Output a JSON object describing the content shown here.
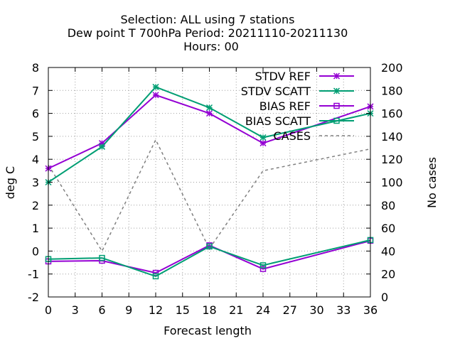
{
  "chart_data": {
    "type": "line",
    "title_lines": [
      "Selection: ALL using     7 stations",
      "Dew point T 700hPa   Period: 20211110-20211130",
      "Hours:  00"
    ],
    "xlabel": "Forecast length",
    "ylabel": "deg C",
    "y2label": "No cases",
    "x": [
      0,
      6,
      12,
      18,
      24,
      36
    ],
    "xlim": [
      0,
      36
    ],
    "xticks": [
      0,
      3,
      6,
      9,
      12,
      15,
      18,
      21,
      24,
      27,
      30,
      33,
      36
    ],
    "ylim": [
      -2,
      8
    ],
    "yticks": [
      -2,
      -1,
      0,
      1,
      2,
      3,
      4,
      5,
      6,
      7,
      8
    ],
    "y2lim": [
      0,
      200
    ],
    "y2ticks": [
      0,
      20,
      40,
      60,
      80,
      100,
      120,
      140,
      160,
      180,
      200
    ],
    "grid": true,
    "legend_position": "top-right",
    "series": [
      {
        "name": "STDV REF",
        "axis": "y",
        "color": "#9400d3",
        "marker": "star",
        "dash": false,
        "values": [
          3.6,
          4.7,
          6.8,
          6.0,
          4.7,
          6.3
        ]
      },
      {
        "name": "STDV SCATT",
        "axis": "y",
        "color": "#009e73",
        "marker": "star",
        "dash": false,
        "values": [
          3.0,
          4.55,
          7.15,
          6.25,
          4.95,
          6.0
        ]
      },
      {
        "name": "BIAS REF",
        "axis": "y",
        "color": "#9400d3",
        "marker": "square",
        "dash": false,
        "values": [
          -0.45,
          -0.42,
          -0.95,
          0.25,
          -0.78,
          0.45
        ]
      },
      {
        "name": "BIAS SCATT",
        "axis": "y",
        "color": "#009e73",
        "marker": "square",
        "dash": false,
        "values": [
          -0.35,
          -0.3,
          -1.1,
          0.2,
          -0.62,
          0.48
        ]
      },
      {
        "name": "CASES",
        "axis": "y2",
        "color": "#808080",
        "marker": "none",
        "dash": true,
        "values": [
          115,
          40,
          137,
          42,
          110,
          129
        ]
      }
    ]
  }
}
